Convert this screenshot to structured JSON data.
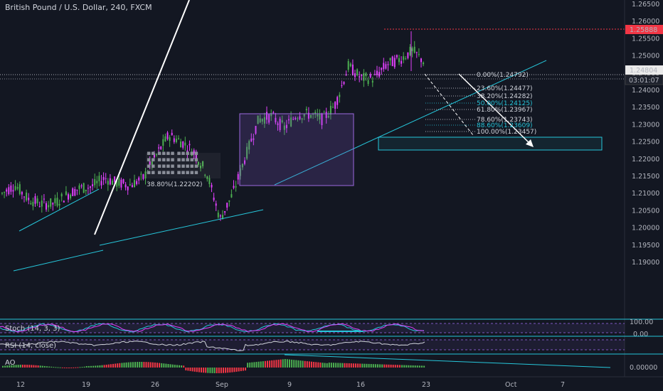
{
  "header": {
    "title": "British Pound / U.S. Dollar, 240, FXCM"
  },
  "price_axis": {
    "labels": [
      "1.26500",
      "1.26000",
      "1.25500",
      "1.25000",
      "1.24500",
      "1.24000",
      "1.23500",
      "1.23000",
      "1.22500",
      "1.22000",
      "1.21500",
      "1.21000",
      "1.20500",
      "1.20000",
      "1.19500",
      "1.19000"
    ],
    "badges": [
      {
        "text": "1.25888",
        "color": "#f23645"
      },
      {
        "text": "1.24804",
        "color": "#eaeaea"
      },
      {
        "text": "03:01:07",
        "color": "#131722"
      }
    ]
  },
  "time_axis": {
    "labels": [
      "12",
      "19",
      "26",
      "Sep",
      "9",
      "16",
      "23",
      "Oct",
      "7"
    ]
  },
  "fib_levels": [
    {
      "text": "0.00%(1.24792)",
      "color": "#d1d4dc"
    },
    {
      "text": "23.60%(1.24477)",
      "color": "#d1d4dc"
    },
    {
      "text": "38.20%(1.24282)",
      "color": "#d1d4dc"
    },
    {
      "text": "50.00%(1.24125)",
      "color": "#26c6da"
    },
    {
      "text": "61.80%(1.23967)",
      "color": "#d1d4dc"
    },
    {
      "text": "78.60%(1.23743)",
      "color": "#d1d4dc"
    },
    {
      "text": "88.60%(1.23609)",
      "color": "#26c6da"
    },
    {
      "text": "100.00%(1.23457)",
      "color": "#d1d4dc"
    }
  ],
  "ghost_fib": {
    "labels": [
      "38.80%(1.22202)"
    ]
  },
  "indicators": {
    "stoch": {
      "label": "Stoch (14, 3, 3)",
      "axis": [
        "100.00",
        "0.00"
      ]
    },
    "rsi": {
      "label": "RSI (14, close)"
    },
    "ao": {
      "label": "AO",
      "axis": [
        "0.00000"
      ]
    }
  },
  "chart_data": {
    "type": "candlestick",
    "title": "British Pound / U.S. Dollar, 240, FXCM",
    "ylim": [
      1.1925,
      1.2665
    ],
    "x_ticks": [
      "12",
      "19",
      "26",
      "Sep",
      "9",
      "16",
      "23",
      "Oct",
      "7"
    ],
    "last_price": 1.24804,
    "high_marker": 1.25888,
    "colors": {
      "up": "#4caf50",
      "down": "#e040fb",
      "trend": "#26c6da",
      "box": "#7e57c2"
    },
    "path": [
      [
        1.215,
        1.205
      ],
      [
        1.213,
        1.212
      ],
      [
        1.21,
        1.207
      ],
      [
        1.208,
        1.206
      ],
      [
        1.208,
        1.206
      ],
      [
        1.211,
        1.208
      ],
      [
        1.213,
        1.21
      ],
      [
        1.215,
        1.209
      ],
      [
        1.216,
        1.213
      ],
      [
        1.218,
        1.208
      ],
      [
        1.212,
        1.213
      ],
      [
        1.218,
        1.211
      ],
      [
        1.224,
        1.218
      ],
      [
        1.23,
        1.224
      ],
      [
        1.227,
        1.223
      ],
      [
        1.226,
        1.218
      ],
      [
        1.216,
        1.215
      ],
      [
        1.206,
        1.199
      ],
      [
        1.208,
        1.212
      ],
      [
        1.219,
        1.223
      ],
      [
        1.233,
        1.23
      ],
      [
        1.231,
        1.234
      ],
      [
        1.231,
        1.227
      ],
      [
        1.235,
        1.231
      ],
      [
        1.234,
        1.232
      ],
      [
        1.234,
        1.229
      ],
      [
        1.234,
        1.238
      ],
      [
        1.246,
        1.248
      ],
      [
        1.245,
        1.242
      ],
      [
        1.24,
        1.247
      ],
      [
        1.248,
        1.247
      ],
      [
        1.246,
        1.252
      ],
      [
        1.25,
        1.253
      ],
      [
        1.25,
        1.246
      ]
    ],
    "pivots": [
      {
        "date": "12",
        "price": 1.205
      },
      {
        "date": "19",
        "price": 1.215
      },
      {
        "date": "26",
        "price": 1.222
      },
      {
        "date": "Sep",
        "price": 1.196
      },
      {
        "date": "9",
        "price": 1.233
      },
      {
        "date": "16",
        "price": 1.247
      },
      {
        "date": "23",
        "price": 1.248
      }
    ]
  }
}
